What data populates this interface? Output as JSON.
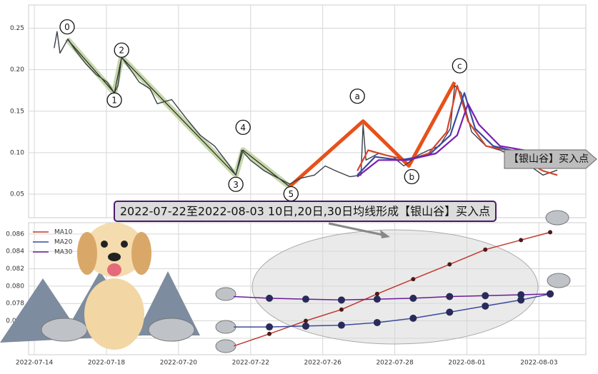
{
  "chart_data": [
    {
      "type": "line",
      "xlim": [
        -0.16,
        15.3
      ],
      "ylim": [
        0.0216,
        0.278
      ],
      "yticks": [
        0.05,
        {
          "value": 0.1,
          "label": "0.10"
        },
        0.15,
        {
          "value": 0.2,
          "label": "0.20"
        },
        0.25
      ],
      "grid": true,
      "series": [
        {
          "color": "#3a3f4a",
          "x": [
            0.55,
            0.63,
            0.71,
            0.93,
            1.13,
            1.43,
            1.72,
            2.02,
            2.22,
            2.32,
            2.42,
            2.62,
            2.91,
            3.21,
            3.41,
            3.81,
            4.2,
            4.6,
            5.0,
            5.39,
            5.59,
            5.75,
            5.99,
            6.38,
            6.78,
            7.08,
            7.37,
            7.77,
            8.07,
            8.36,
            8.76,
            9.06,
            9.12,
            9.2,
            9.55,
            9.95,
            10.25,
            10.65,
            10.94,
            11.24,
            11.54,
            11.66,
            11.84,
            12.13,
            12.53,
            12.92,
            13.52,
            14.11,
            14.51
          ],
          "values": [
            0.226,
            0.246,
            0.22,
            0.237,
            0.224,
            0.207,
            0.194,
            0.185,
            0.172,
            0.181,
            0.215,
            0.203,
            0.185,
            0.177,
            0.159,
            0.164,
            0.142,
            0.121,
            0.108,
            0.086,
            0.073,
            0.103,
            0.091,
            0.078,
            0.069,
            0.062,
            0.069,
            0.073,
            0.084,
            0.078,
            0.071,
            0.073,
            0.134,
            0.091,
            0.099,
            0.095,
            0.084,
            0.097,
            0.103,
            0.108,
            0.129,
            0.181,
            0.172,
            0.125,
            0.108,
            0.103,
            0.091,
            0.073,
            0.079
          ]
        },
        {
          "color": "#d9442a",
          "x": [
            8.96,
            9.26,
            9.75,
            10.35,
            10.94,
            11.44,
            11.73,
            12.03,
            12.53,
            13.12,
            14.11,
            14.51
          ],
          "values": [
            0.078,
            0.103,
            0.097,
            0.091,
            0.099,
            0.125,
            0.181,
            0.138,
            0.108,
            0.103,
            0.078,
            0.073
          ]
        },
        {
          "color": "#3a4aa0",
          "x": [
            8.96,
            9.45,
            10.15,
            10.94,
            11.54,
            11.93,
            12.23,
            12.73,
            13.32,
            14.11,
            14.61
          ],
          "values": [
            0.073,
            0.095,
            0.091,
            0.097,
            0.121,
            0.172,
            0.129,
            0.108,
            0.102,
            0.082,
            0.082
          ]
        },
        {
          "color": "#7a1fb0",
          "x": [
            8.96,
            9.55,
            10.35,
            11.14,
            11.73,
            12.03,
            12.33,
            12.92,
            13.72,
            14.31,
            14.71
          ],
          "values": [
            0.071,
            0.091,
            0.091,
            0.099,
            0.121,
            0.159,
            0.134,
            0.108,
            0.102,
            0.084,
            0.084
          ]
        }
      ],
      "waves": [
        {
          "color": "#b9cc98",
          "points": [
            {
              "label": "0",
              "x": 0.91,
              "value": 0.237
            },
            {
              "label": "1",
              "x": 2.22,
              "value": 0.172
            },
            {
              "label": "2",
              "x": 2.42,
              "value": 0.215
            },
            {
              "label": "3",
              "x": 5.59,
              "value": 0.073
            },
            {
              "label": "4",
              "x": 5.79,
              "value": 0.103
            },
            {
              "label": "5",
              "x": 7.08,
              "value": 0.059
            }
          ]
        },
        {
          "color": "#e8501a",
          "points": [
            {
              "label": "a",
              "x": 9.12,
              "value": 0.138
            },
            {
              "label": "b",
              "x": 10.39,
              "value": 0.084
            },
            {
              "label": "c",
              "x": 11.66,
              "value": 0.185
            }
          ]
        }
      ],
      "banner": "2022-07-22至2022-08-03 10日,20日,30日均线形成【银山谷】买入点",
      "signal": "【银山谷】买入点"
    },
    {
      "type": "line",
      "xlim": [
        -0.16,
        15.3
      ],
      "ylim": [
        0.0721,
        0.0873
      ],
      "xticks": [
        {
          "value": 0,
          "label": "2022-07-14"
        },
        {
          "value": 2,
          "label": "2022-07-18"
        },
        {
          "value": 4,
          "label": "2022-07-20"
        },
        {
          "value": 6,
          "label": "2022-07-22"
        },
        {
          "value": 8,
          "label": "2022-07-26"
        },
        {
          "value": 10,
          "label": "2022-07-28"
        },
        {
          "value": 12,
          "label": "2022-08-01"
        },
        {
          "value": 14,
          "label": "2022-08-03"
        }
      ],
      "yticks": [
        0.074,
        0.076,
        0.078,
        {
          "value": 0.08,
          "label": "0.080"
        },
        0.082,
        0.084,
        0.086
      ],
      "grid": true,
      "legend": "upper left",
      "series": [
        {
          "name": "MA10",
          "color": "#c0392b",
          "x": [
            5.53,
            6.52,
            7.53,
            8.52,
            9.51,
            10.51,
            11.52,
            12.51,
            13.5,
            14.31
          ],
          "values": [
            0.0731,
            0.0745,
            0.076,
            0.0773,
            0.0791,
            0.0808,
            0.0825,
            0.0842,
            0.0853,
            0.0862
          ]
        },
        {
          "name": "MA20",
          "color": "#3b4a9c",
          "x": [
            5.53,
            6.52,
            7.53,
            8.52,
            9.51,
            10.51,
            11.52,
            12.51,
            13.5,
            14.31
          ],
          "values": [
            0.0753,
            0.0753,
            0.0754,
            0.0755,
            0.0758,
            0.0763,
            0.077,
            0.0777,
            0.0784,
            0.0791
          ]
        },
        {
          "name": "MA30",
          "color": "#6a1b9a",
          "x": [
            5.53,
            6.52,
            7.53,
            8.52,
            9.51,
            10.51,
            11.52,
            12.51,
            13.5,
            14.31
          ],
          "values": [
            0.0788,
            0.0786,
            0.0785,
            0.0784,
            0.0785,
            0.0786,
            0.0788,
            0.0789,
            0.079,
            0.0791
          ]
        }
      ]
    }
  ]
}
